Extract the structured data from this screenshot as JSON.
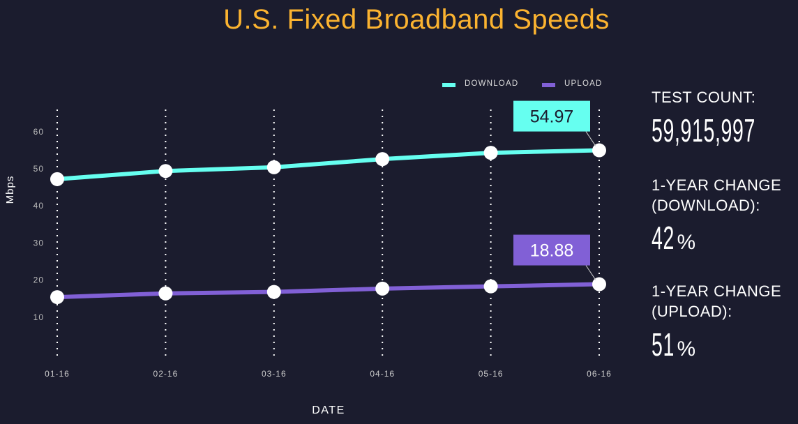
{
  "chart_data": {
    "type": "line",
    "title": "U.S. Fixed Broadband Speeds",
    "xlabel": "DATE",
    "ylabel": "Mbps",
    "categories": [
      "01-16",
      "02-16",
      "03-16",
      "04-16",
      "05-16",
      "06-16"
    ],
    "yticks": [
      10,
      20,
      30,
      40,
      50,
      60
    ],
    "ylim": [
      0,
      67
    ],
    "grid": "vertical dotted",
    "legend_position": "top-right",
    "series": [
      {
        "name": "DOWNLOAD",
        "color": "#66fff0",
        "values": [
          47.2,
          49.4,
          50.4,
          52.6,
          54.3,
          54.97
        ],
        "callout": "54.97"
      },
      {
        "name": "UPLOAD",
        "color": "#8160d6",
        "values": [
          15.4,
          16.4,
          16.8,
          17.7,
          18.3,
          18.88
        ],
        "callout": "18.88"
      }
    ]
  },
  "stats": {
    "test_count_label": "TEST COUNT:",
    "test_count": "59,915,997",
    "download_change_label_1": "1-YEAR CHANGE",
    "download_change_label_2": "(DOWNLOAD):",
    "download_change": "42",
    "upload_change_label_1": "1-YEAR CHANGE",
    "upload_change_label_2": "(UPLOAD):",
    "upload_change": "51",
    "percent_sign": "%"
  }
}
